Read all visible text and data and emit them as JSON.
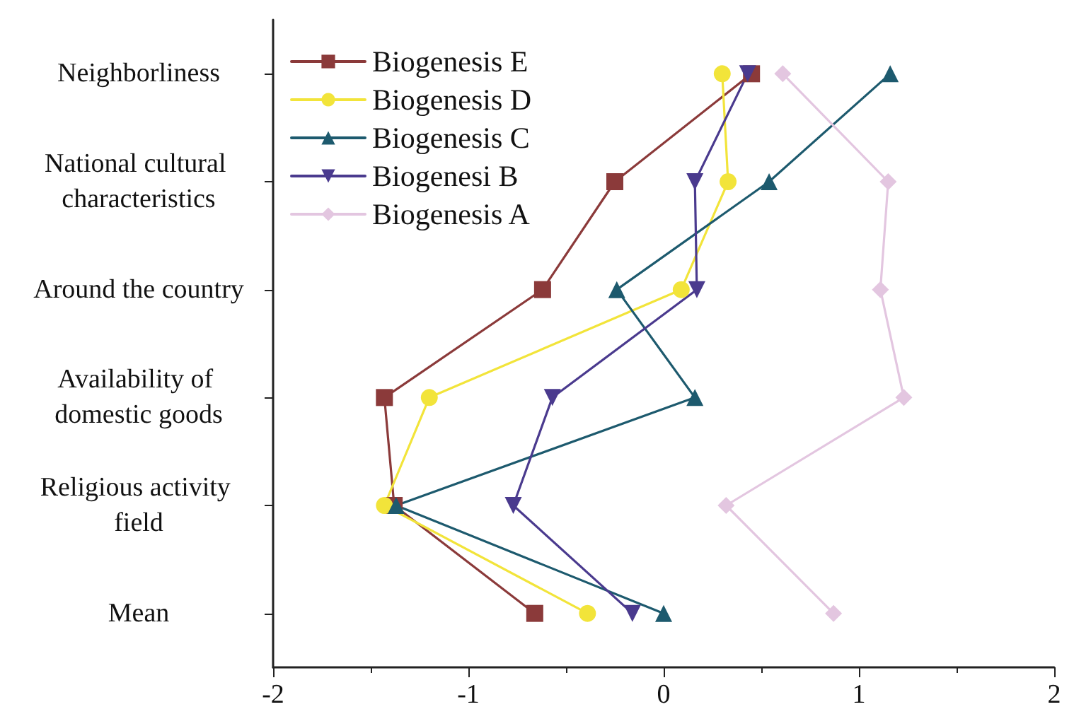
{
  "chart_data": {
    "type": "line",
    "orientation": "horizontal",
    "categories": [
      "Neighborliness",
      "National cultural characteristics",
      "Around the country",
      "Availability of domestic goods",
      "Religious activity field",
      "Mean"
    ],
    "xlim": [
      -2,
      2
    ],
    "xticks": [
      -2,
      -1,
      0,
      1,
      2
    ],
    "grid": false,
    "legend": "top left",
    "line_style": "solid",
    "series": [
      {
        "name": "Biogenesis E",
        "color": "#8b3a3a",
        "marker": "square",
        "values": [
          0.45,
          -0.25,
          -0.62,
          -1.43,
          -1.38,
          -0.66
        ]
      },
      {
        "name": "Biogenesis D",
        "color": "#f2e43a",
        "marker": "circle",
        "values": [
          0.3,
          0.33,
          0.09,
          -1.2,
          -1.43,
          -0.39
        ]
      },
      {
        "name": "Biogenesis C",
        "color": "#1d5a6e",
        "marker": "triangle",
        "values": [
          1.16,
          0.54,
          -0.24,
          0.16,
          -1.37,
          0.0
        ]
      },
      {
        "name": "Biogenesi B",
        "color": "#4a3a8e",
        "marker": "triangle-down",
        "values": [
          0.43,
          0.16,
          0.17,
          -0.57,
          -0.77,
          -0.16
        ]
      },
      {
        "name": "Biogenesis A",
        "color": "#e3c6e0",
        "marker": "diamond",
        "values": [
          0.61,
          1.15,
          1.11,
          1.23,
          0.32,
          0.87
        ]
      }
    ]
  }
}
